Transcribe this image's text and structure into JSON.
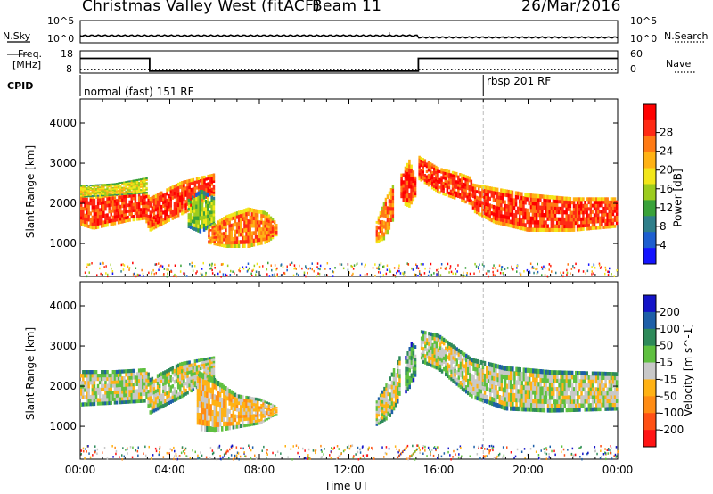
{
  "header": {
    "station": "Christmas Valley West (fitACF)",
    "beam": "Beam 11",
    "date": "26/Mar/2016"
  },
  "noise_panel": {
    "left_label": "N.Sky",
    "right_label": "N.Search",
    "left_ticks": [
      "10^5",
      "10^0"
    ],
    "right_ticks": [
      "10^5",
      "10^0"
    ]
  },
  "freq_panel": {
    "left_label_line1": "Freq.",
    "left_label_line2": "[MHz]",
    "right_label": "Nave",
    "left_ticks": [
      "18",
      "8"
    ],
    "right_ticks": [
      "60",
      "0"
    ],
    "freq_steps_mhz": [
      [
        0,
        14.6
      ],
      [
        3.1,
        8.9
      ],
      [
        15.1,
        14.6
      ],
      [
        24,
        14.6
      ]
    ],
    "nave_level": 10
  },
  "cpid": {
    "label": "CPID",
    "modes": [
      {
        "text": "normal (fast) 151 RF",
        "start_hour": 0
      },
      {
        "text": "rbsp 201 RF",
        "start_hour": 18
      }
    ]
  },
  "chart_data": [
    {
      "type": "heatmap",
      "name_of_quantity": "Power [dB]",
      "ylabel": "Slant Range [km]",
      "xlabel": "",
      "xlim": [
        0,
        24
      ],
      "ylim": [
        180,
        4600
      ],
      "yticks": [
        "1000",
        "2000",
        "3000",
        "4000"
      ],
      "colorbar": {
        "title": "Power [dB]",
        "ticks": [
          "4",
          "8",
          "12",
          "16",
          "20",
          "24",
          "28"
        ],
        "colors": [
          "#1414ff",
          "#1e5fd0",
          "#2f7f8a",
          "#3aa23a",
          "#9ccc1e",
          "#f2e61a",
          "#ffb214",
          "#ff7a14",
          "#ff2a14",
          "#ff0000"
        ]
      },
      "regions": [
        {
          "t": [
            0.0,
            0.6,
            1.4,
            2.2,
            2.9,
            3.1,
            3.8,
            4.5,
            5.2,
            6.0
          ],
          "low": [
            1450,
            1350,
            1450,
            1550,
            1600,
            1300,
            1500,
            1700,
            1900,
            2200
          ],
          "high": [
            2250,
            2200,
            2250,
            2300,
            2350,
            2150,
            2350,
            2550,
            2650,
            2750
          ],
          "color_index": 8
        },
        {
          "t": [
            0.0,
            1.5,
            3.0
          ],
          "low": [
            2150,
            2200,
            2250
          ],
          "high": [
            2450,
            2500,
            2650
          ],
          "color_index": 5
        },
        {
          "t": [
            4.8,
            5.4,
            6.0
          ],
          "low": [
            1400,
            1250,
            1500
          ],
          "high": [
            2100,
            2350,
            2150
          ],
          "color_index": 4
        },
        {
          "t": [
            5.7,
            6.5,
            7.5,
            8.3,
            8.8
          ],
          "low": [
            1000,
            900,
            900,
            1000,
            1200
          ],
          "high": [
            1400,
            1700,
            1900,
            1800,
            1500
          ],
          "color_index": 7
        },
        {
          "t": [
            13.2,
            13.6,
            14.0
          ],
          "low": [
            1000,
            1100,
            1600
          ],
          "high": [
            1500,
            2100,
            2500
          ],
          "color_index": 7
        },
        {
          "t": [
            14.3,
            14.7,
            15.0
          ],
          "low": [
            2000,
            1900,
            2200
          ],
          "high": [
            2700,
            3100,
            2600
          ],
          "color_index": 8
        },
        {
          "t": [
            15.1,
            16.0,
            17.0,
            17.5
          ],
          "low": [
            2600,
            2250,
            2050,
            1950
          ],
          "high": [
            3200,
            2900,
            2750,
            2650
          ],
          "color_index": 8
        },
        {
          "t": [
            17.5,
            18.5,
            20.0,
            22.0,
            24.0
          ],
          "low": [
            1800,
            1500,
            1300,
            1300,
            1400
          ],
          "high": [
            2500,
            2400,
            2250,
            2150,
            2150
          ],
          "color_index": 8
        }
      ]
    },
    {
      "type": "heatmap",
      "name_of_quantity": "Velocity [m s^-1]",
      "ylabel": "Slant Range [km]",
      "xlabel": "Time UT",
      "xlim": [
        0,
        24
      ],
      "ylim": [
        180,
        4600
      ],
      "xticks": [
        "00:00",
        "04:00",
        "08:00",
        "12:00",
        "16:00",
        "20:00",
        "00:00"
      ],
      "yticks": [
        "1000",
        "2000",
        "3000",
        "4000"
      ],
      "colorbar": {
        "title": "Velocity [m s^-1]",
        "ticks": [
          "200",
          "100",
          "50",
          "15",
          "-15",
          "-50",
          "-100",
          "-200"
        ],
        "colors": [
          "#1414c8",
          "#1e5fa8",
          "#2e8a5a",
          "#5fc040",
          "#c8c8c8",
          "#ffb214",
          "#ff8c14",
          "#ff5014",
          "#ff1414"
        ]
      },
      "regions": [
        {
          "t": [
            0.0,
            1.5,
            3.0,
            3.1,
            4.5,
            6.0
          ],
          "low": [
            1500,
            1550,
            1600,
            1300,
            1700,
            2200
          ],
          "high": [
            2400,
            2400,
            2450,
            2200,
            2600,
            2750
          ],
          "color_index": 4
        },
        {
          "t": [
            5.2,
            6.0,
            7.0,
            8.0,
            8.8
          ],
          "low": [
            900,
            850,
            950,
            1050,
            1300
          ],
          "high": [
            2400,
            2200,
            1800,
            1700,
            1500
          ],
          "color_index": 5
        },
        {
          "t": [
            13.2,
            13.8,
            14.3
          ],
          "low": [
            1000,
            1200,
            1700
          ],
          "high": [
            1600,
            2200,
            2800
          ],
          "color_index": 4
        },
        {
          "t": [
            14.5,
            14.8,
            15.0
          ],
          "low": [
            1800,
            2000,
            2300
          ],
          "high": [
            2700,
            3100,
            3000
          ],
          "color_index": 3
        },
        {
          "t": [
            15.2,
            16.0,
            17.5,
            19.0,
            21.0,
            24.0
          ],
          "low": [
            2600,
            2400,
            1700,
            1400,
            1350,
            1400
          ],
          "high": [
            3400,
            3300,
            2700,
            2500,
            2400,
            2350
          ],
          "color_index": 4
        }
      ]
    }
  ]
}
